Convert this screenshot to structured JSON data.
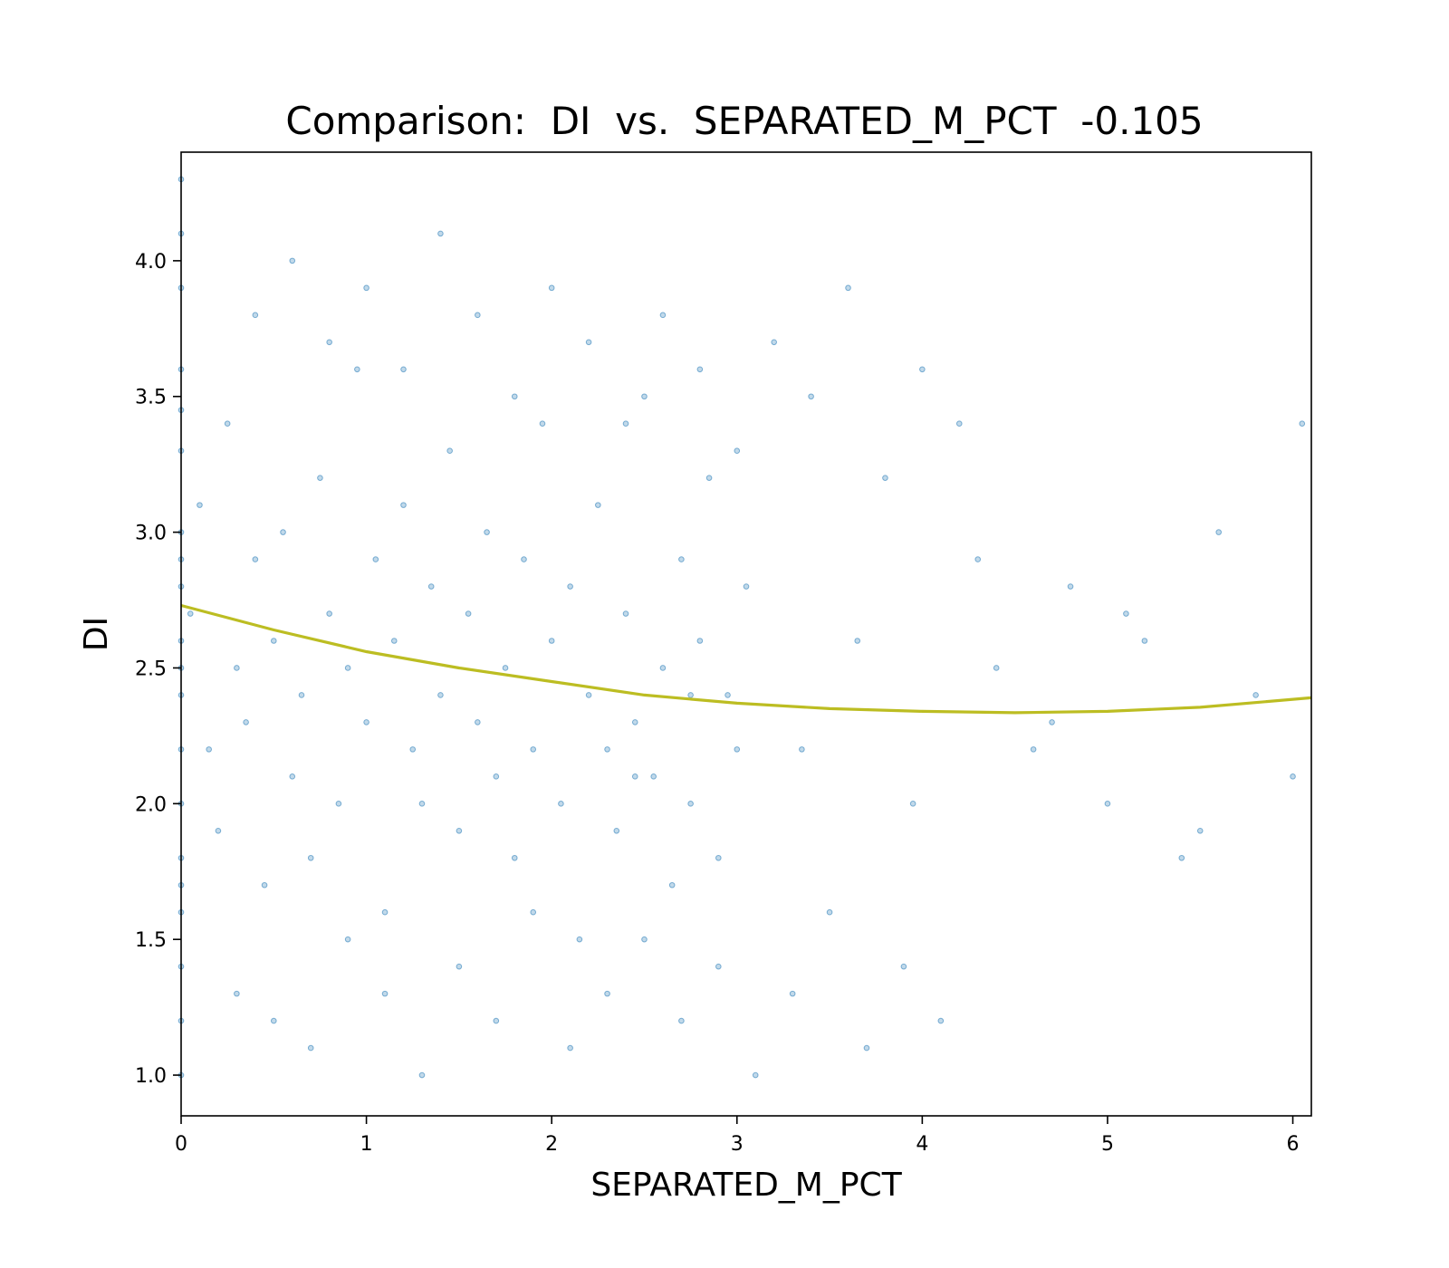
{
  "chart_data": {
    "type": "scatter",
    "title": "Comparison:  DI  vs.  SEPARATED_M_PCT  -0.105",
    "xlabel": "SEPARATED_M_PCT",
    "ylabel": "DI",
    "xlim": [
      0,
      6.1
    ],
    "ylim": [
      0.85,
      4.4
    ],
    "x_ticks": [
      0,
      1,
      2,
      3,
      4,
      5,
      6
    ],
    "y_ticks": [
      1.0,
      1.5,
      2.0,
      2.5,
      3.0,
      3.5,
      4.0
    ],
    "x_tick_labels": [
      "0",
      "1",
      "2",
      "3",
      "4",
      "5",
      "6"
    ],
    "y_tick_labels": [
      "1.0",
      "1.5",
      "2.0",
      "2.5",
      "3.0",
      "3.5",
      "4.0"
    ],
    "grid": false,
    "legend": "none",
    "colors": {
      "points": "#1f77b4",
      "trend": "#bcbd22"
    },
    "series": [
      {
        "kind": "points",
        "x": [
          0.0,
          0.0,
          0.0,
          0.0,
          0.0,
          0.0,
          0.0,
          0.0,
          0.0,
          0.0,
          0.0,
          0.0,
          0.0,
          0.0,
          0.0,
          0.0,
          0.0,
          0.0,
          0.0,
          0.0,
          0.05,
          0.1,
          0.15,
          0.2,
          0.25,
          0.3,
          0.35,
          0.4,
          0.45,
          0.5,
          0.55,
          0.6,
          0.65,
          0.7,
          0.75,
          0.8,
          0.85,
          0.9,
          0.95,
          1.0,
          1.05,
          1.1,
          1.15,
          1.2,
          1.25,
          1.3,
          1.35,
          1.4,
          1.45,
          1.5,
          1.55,
          1.6,
          1.65,
          1.7,
          1.75,
          1.8,
          1.85,
          1.9,
          1.95,
          2.0,
          2.05,
          2.1,
          2.15,
          2.2,
          2.25,
          2.3,
          2.35,
          2.4,
          2.45,
          2.5,
          2.55,
          2.6,
          2.65,
          2.7,
          2.75,
          2.8,
          2.85,
          2.9,
          2.95,
          3.0,
          0.3,
          0.5,
          0.7,
          0.9,
          1.1,
          1.3,
          1.5,
          1.7,
          1.9,
          2.1,
          2.3,
          2.5,
          2.7,
          2.9,
          3.1,
          3.3,
          3.5,
          3.7,
          3.9,
          4.1,
          0.4,
          0.6,
          0.8,
          1.0,
          1.2,
          1.4,
          1.6,
          1.8,
          2.0,
          2.2,
          2.4,
          2.6,
          2.8,
          3.0,
          3.2,
          3.4,
          3.6,
          3.8,
          4.0,
          4.2,
          4.4,
          4.6,
          4.8,
          5.0,
          5.2,
          5.4,
          5.6,
          5.8,
          6.0,
          6.05,
          5.5,
          5.1,
          4.7,
          4.3,
          3.95,
          3.65,
          3.35,
          3.05,
          2.75,
          2.45
        ],
        "y": [
          4.3,
          3.9,
          3.6,
          3.3,
          3.0,
          2.8,
          2.6,
          2.4,
          2.2,
          2.0,
          1.8,
          1.6,
          1.4,
          1.2,
          1.0,
          4.1,
          3.45,
          2.9,
          2.5,
          1.7,
          2.7,
          3.1,
          2.2,
          1.9,
          3.4,
          2.5,
          2.3,
          2.9,
          1.7,
          2.6,
          3.0,
          2.1,
          2.4,
          1.8,
          3.2,
          2.7,
          2.0,
          2.5,
          3.6,
          2.3,
          2.9,
          1.6,
          2.6,
          3.1,
          2.2,
          2.0,
          2.8,
          2.4,
          3.3,
          1.9,
          2.7,
          2.3,
          3.0,
          2.1,
          2.5,
          1.8,
          2.9,
          2.2,
          3.4,
          2.6,
          2.0,
          2.8,
          1.5,
          2.4,
          3.1,
          2.2,
          1.9,
          2.7,
          2.3,
          3.5,
          2.1,
          2.5,
          1.7,
          2.9,
          2.0,
          2.6,
          3.2,
          1.8,
          2.4,
          2.2,
          1.3,
          1.2,
          1.1,
          1.5,
          1.3,
          1.0,
          1.4,
          1.2,
          1.6,
          1.1,
          1.3,
          1.5,
          1.2,
          1.4,
          1.0,
          1.3,
          1.6,
          1.1,
          1.4,
          1.2,
          3.8,
          4.0,
          3.7,
          3.9,
          3.6,
          4.1,
          3.8,
          3.5,
          3.9,
          3.7,
          3.4,
          3.8,
          3.6,
          3.3,
          3.7,
          3.5,
          3.9,
          3.2,
          3.6,
          3.4,
          2.5,
          2.2,
          2.8,
          2.0,
          2.6,
          1.8,
          3.0,
          2.4,
          2.1,
          3.4,
          1.9,
          2.7,
          2.3,
          2.9,
          2.0,
          2.6,
          2.2,
          2.8,
          2.4,
          2.1
        ]
      },
      {
        "kind": "trend",
        "x": [
          0.0,
          0.5,
          1.0,
          1.5,
          2.0,
          2.5,
          3.0,
          3.5,
          4.0,
          4.5,
          5.0,
          5.5,
          6.1
        ],
        "y": [
          2.73,
          2.64,
          2.56,
          2.5,
          2.45,
          2.4,
          2.37,
          2.35,
          2.34,
          2.335,
          2.34,
          2.355,
          2.39
        ]
      }
    ]
  }
}
